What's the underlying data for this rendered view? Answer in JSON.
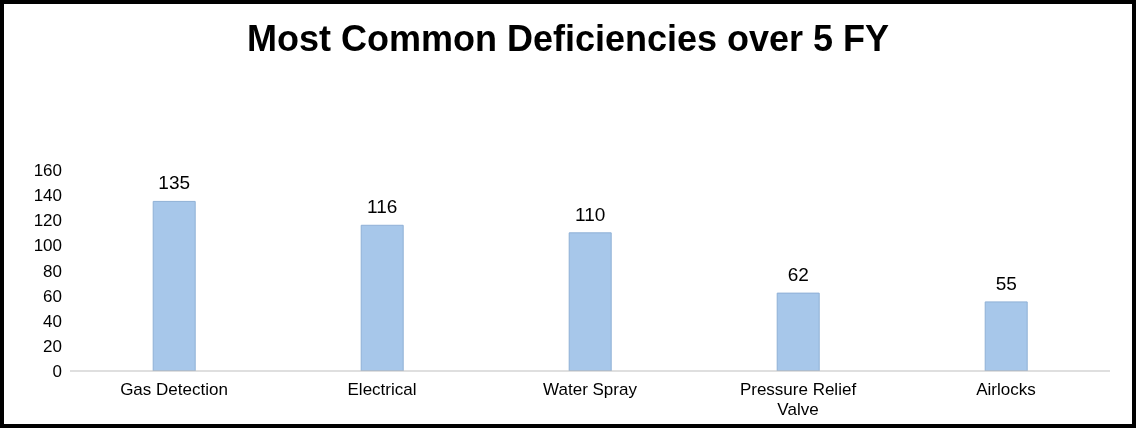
{
  "chart_data": {
    "type": "bar",
    "title": "Most Common Deficiencies over 5 FY",
    "categories": [
      "Gas Detection",
      "Electrical",
      "Water Spray",
      "Pressure Relief Valve",
      "Airlocks"
    ],
    "values": [
      135,
      116,
      110,
      62,
      55
    ],
    "color": "#a7c7ea",
    "ylim": [
      0,
      160
    ],
    "yticks": [
      0,
      20,
      40,
      60,
      80,
      100,
      120,
      140,
      160
    ],
    "grid": false,
    "data_labels": true
  }
}
